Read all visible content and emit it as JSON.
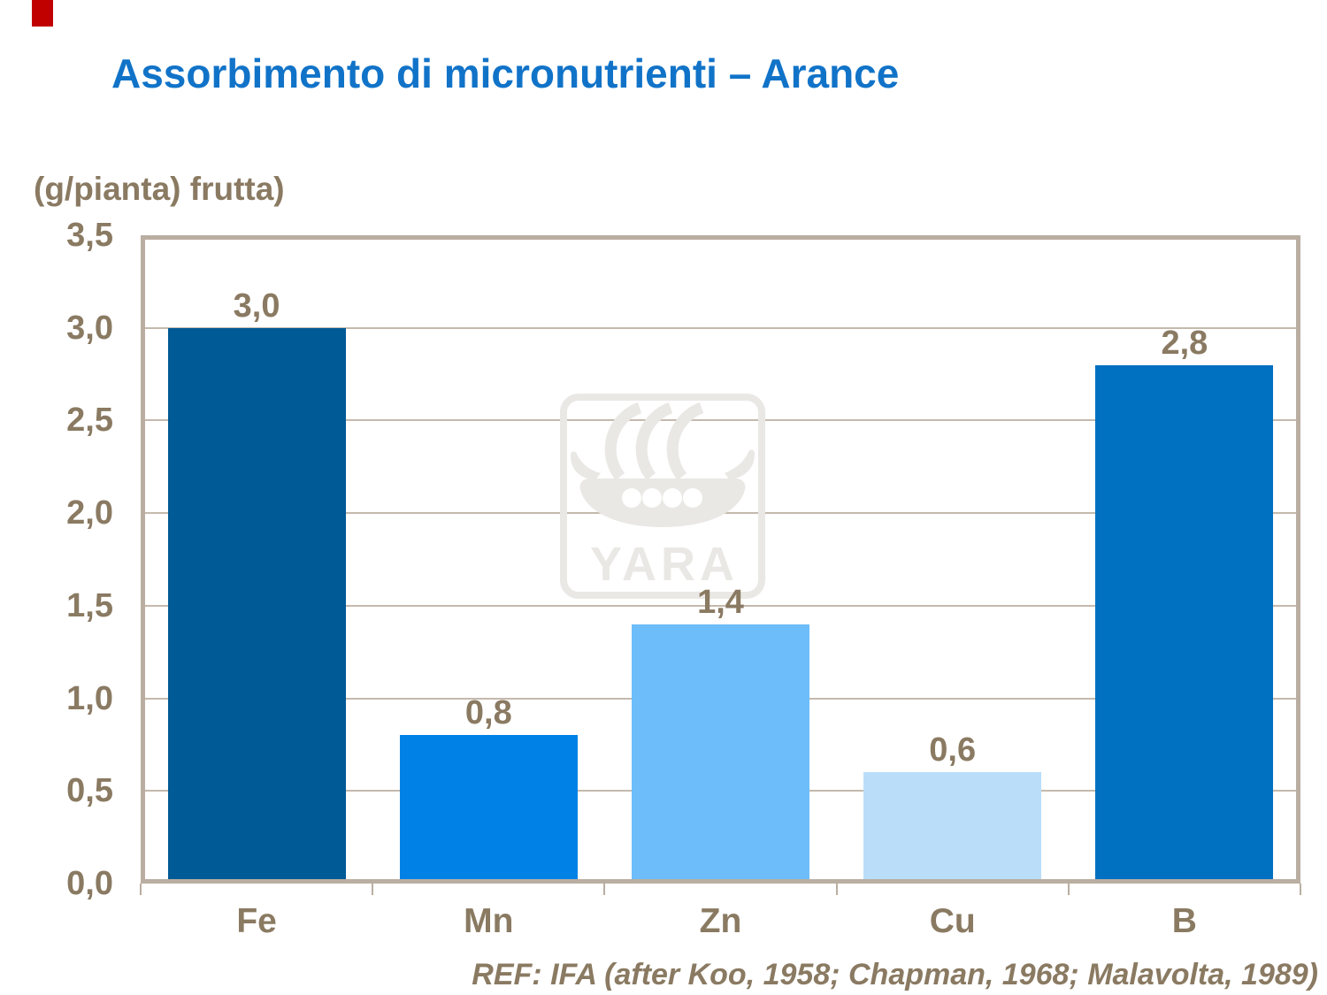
{
  "brand": {
    "accent_color": "#C00000",
    "watermark_text": "YARA",
    "watermark_color": "#E9E8E5"
  },
  "title": {
    "text": "Assorbimento di micronutrienti – Arance",
    "color": "#1173C8"
  },
  "axis_unit_label": "(g/pianta) frutta)",
  "reference": "REF: IFA (after Koo, 1958; Chapman, 1968; Malavolta, 1989)",
  "text_color": "#8A7A62",
  "axis_frame_color": "#B9AEA1",
  "gridline_color": "#C4B9AC",
  "chart_data": {
    "type": "bar",
    "title": "Assorbimento di micronutrienti – Arance",
    "ylabel": "(g/pianta) frutta)",
    "xlabel": "",
    "categories": [
      "Fe",
      "Mn",
      "Zn",
      "Cu",
      "B"
    ],
    "values": [
      3.0,
      0.8,
      1.4,
      0.6,
      2.8
    ],
    "value_labels": [
      "3,0",
      "0,8",
      "1,4",
      "0,6",
      "2,8"
    ],
    "bar_colors": [
      "#005A96",
      "#0081E6",
      "#6CBDF9",
      "#BADEFA",
      "#0070C0"
    ],
    "ylim": [
      0,
      3.5
    ],
    "ytick_step": 0.5,
    "ytick_labels": [
      "0,0",
      "0,5",
      "1,0",
      "1,5",
      "2,0",
      "2,5",
      "3,0",
      "3,5"
    ],
    "grid": true,
    "legend": false
  }
}
